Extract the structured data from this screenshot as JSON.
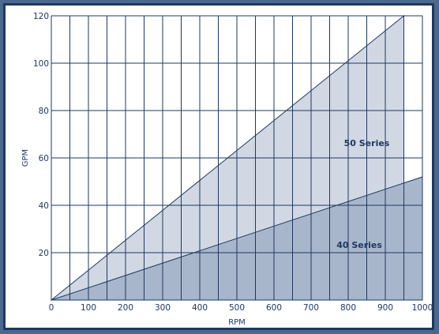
{
  "chart_data": {
    "type": "area",
    "xlabel": "RPM",
    "ylabel": "GPM",
    "xlim": [
      0,
      1000
    ],
    "ylim": [
      0,
      120
    ],
    "x_ticks": [
      0,
      100,
      200,
      300,
      400,
      500,
      600,
      700,
      800,
      900,
      1000
    ],
    "y_ticks": [
      20,
      40,
      60,
      80,
      100,
      120
    ],
    "grid": true,
    "series": [
      {
        "name": "50 Series",
        "x": [
          0,
          950
        ],
        "y": [
          0,
          120
        ],
        "fill": "#d1d8e4"
      },
      {
        "name": "40 Series",
        "x": [
          0,
          1000
        ],
        "y": [
          0,
          52
        ],
        "fill": "#a8b6cc"
      }
    ],
    "colors": {
      "grid": "#1f3860",
      "text": "#1f3860",
      "frame": "#1f3860",
      "background": "#4a6890"
    }
  }
}
